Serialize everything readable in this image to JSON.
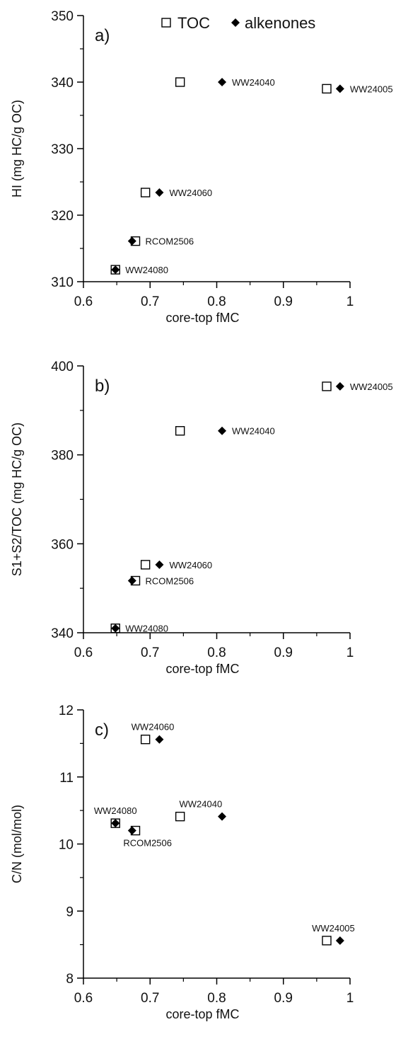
{
  "chart_data": [
    {
      "type": "scatter",
      "panel_label": "a)",
      "xlabel": "core-top fMC",
      "ylabel": "HI (mg HC/g OC)",
      "xlim": [
        0.6,
        1.0
      ],
      "ylim": [
        310,
        350
      ],
      "xticks": [
        0.6,
        0.7,
        0.8,
        0.9,
        1
      ],
      "xtick_labels": [
        "0.6",
        "0.7",
        "0.8",
        "0.9",
        "1"
      ],
      "yticks": [
        310,
        320,
        330,
        340,
        350
      ],
      "ytick_labels": [
        "310",
        "320",
        "330",
        "340",
        "350"
      ],
      "legend": [
        "TOC",
        "alkenones"
      ],
      "legend_position": "top",
      "series": [
        {
          "name": "TOC",
          "marker": "open-square",
          "points": [
            {
              "x": 0.745,
              "y": 340
            },
            {
              "x": 0.965,
              "y": 339
            },
            {
              "x": 0.693,
              "y": 323.4
            },
            {
              "x": 0.678,
              "y": 316.1
            },
            {
              "x": 0.648,
              "y": 311.8
            }
          ]
        },
        {
          "name": "alkenones",
          "marker": "filled-diamond",
          "points": [
            {
              "x": 0.808,
              "y": 340
            },
            {
              "x": 0.985,
              "y": 339
            },
            {
              "x": 0.714,
              "y": 323.4
            },
            {
              "x": 0.673,
              "y": 316.1
            },
            {
              "x": 0.648,
              "y": 311.8
            }
          ]
        }
      ],
      "annotations": [
        {
          "text": "WW24040",
          "x": 0.808,
          "y": 340,
          "pos": "right"
        },
        {
          "text": "WW24005",
          "x": 0.985,
          "y": 339,
          "pos": "right"
        },
        {
          "text": "WW24060",
          "x": 0.714,
          "y": 323.4,
          "pos": "right"
        },
        {
          "text": "RCOM2506",
          "x": 0.678,
          "y": 316.1,
          "pos": "right"
        },
        {
          "text": "WW24080",
          "x": 0.648,
          "y": 311.8,
          "pos": "right"
        }
      ]
    },
    {
      "type": "scatter",
      "panel_label": "b)",
      "xlabel": "core-top fMC",
      "ylabel": "S1+S2/TOC (mg HC/g OC)",
      "xlim": [
        0.6,
        1.0
      ],
      "ylim": [
        340,
        400
      ],
      "xticks": [
        0.6,
        0.7,
        0.8,
        0.9,
        1
      ],
      "xtick_labels": [
        "0.6",
        "0.7",
        "0.8",
        "0.9",
        "1"
      ],
      "yticks": [
        340,
        360,
        380,
        400
      ],
      "ytick_labels": [
        "340",
        "360",
        "380",
        "400"
      ],
      "series": [
        {
          "name": "TOC",
          "marker": "open-square",
          "points": [
            {
              "x": 0.965,
              "y": 395.4
            },
            {
              "x": 0.745,
              "y": 385.4
            },
            {
              "x": 0.693,
              "y": 355.3
            },
            {
              "x": 0.678,
              "y": 351.7
            },
            {
              "x": 0.648,
              "y": 341
            }
          ]
        },
        {
          "name": "alkenones",
          "marker": "filled-diamond",
          "points": [
            {
              "x": 0.985,
              "y": 395.4
            },
            {
              "x": 0.808,
              "y": 385.4
            },
            {
              "x": 0.714,
              "y": 355.3
            },
            {
              "x": 0.673,
              "y": 351.7
            },
            {
              "x": 0.648,
              "y": 341
            }
          ]
        }
      ],
      "annotations": [
        {
          "text": "WW24005",
          "x": 0.985,
          "y": 395.4,
          "pos": "right"
        },
        {
          "text": "WW24040",
          "x": 0.808,
          "y": 385.4,
          "pos": "right"
        },
        {
          "text": "WW24060",
          "x": 0.714,
          "y": 355.3,
          "pos": "right"
        },
        {
          "text": "RCOM2506",
          "x": 0.678,
          "y": 351.7,
          "pos": "right"
        },
        {
          "text": "WW24080",
          "x": 0.648,
          "y": 341,
          "pos": "right"
        }
      ]
    },
    {
      "type": "scatter",
      "panel_label": "c)",
      "xlabel": "core-top fMC",
      "ylabel": "C/N (mol/mol)",
      "xlim": [
        0.6,
        1.0
      ],
      "ylim": [
        8,
        12
      ],
      "xticks": [
        0.6,
        0.7,
        0.8,
        0.9,
        1
      ],
      "xtick_labels": [
        "0.6",
        "0.7",
        "0.8",
        "0.9",
        "1"
      ],
      "yticks": [
        8,
        9,
        10,
        11,
        12
      ],
      "ytick_labels": [
        "8",
        "9",
        "10",
        "11",
        "12"
      ],
      "series": [
        {
          "name": "TOC",
          "marker": "open-square",
          "points": [
            {
              "x": 0.693,
              "y": 11.56
            },
            {
              "x": 0.745,
              "y": 10.41
            },
            {
              "x": 0.648,
              "y": 10.31
            },
            {
              "x": 0.678,
              "y": 10.2
            },
            {
              "x": 0.965,
              "y": 8.56
            }
          ]
        },
        {
          "name": "alkenones",
          "marker": "filled-diamond",
          "points": [
            {
              "x": 0.714,
              "y": 11.56
            },
            {
              "x": 0.808,
              "y": 10.41
            },
            {
              "x": 0.648,
              "y": 10.31
            },
            {
              "x": 0.673,
              "y": 10.2
            },
            {
              "x": 0.985,
              "y": 8.56
            }
          ]
        }
      ],
      "annotations": [
        {
          "text": "WW24060",
          "x": 0.704,
          "y": 11.56,
          "pos": "above"
        },
        {
          "text": "WW24040",
          "x": 0.776,
          "y": 10.41,
          "pos": "above"
        },
        {
          "text": "WW24080",
          "x": 0.648,
          "y": 10.31,
          "pos": "above"
        },
        {
          "text": "RCOM2506",
          "x": 0.675,
          "y": 10.2,
          "pos": "below"
        },
        {
          "text": "WW24005",
          "x": 0.975,
          "y": 8.56,
          "pos": "above"
        }
      ]
    }
  ]
}
